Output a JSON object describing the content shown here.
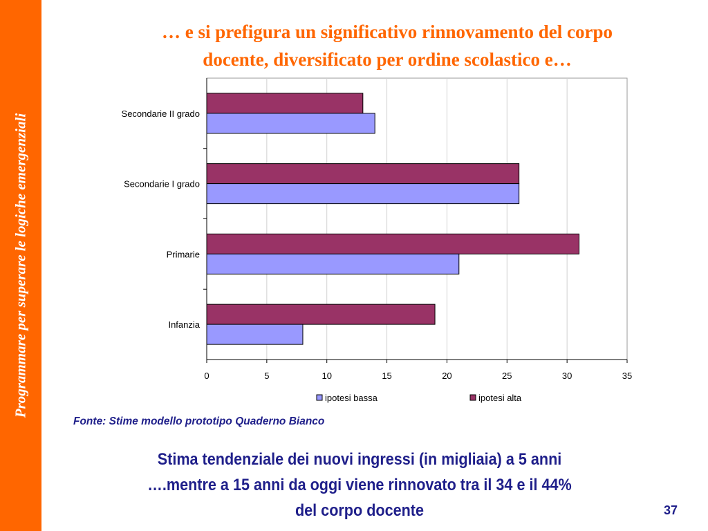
{
  "sidebar": {
    "text": "Programmare per superare le logiche emergenziali"
  },
  "slide": {
    "title_line1": "… e si prefigura un significativo rinnovamento del corpo",
    "title_line2": "docente, diversificato per ordine scolastico e…",
    "source": "Fonte: Stime modello prototipo Quaderno Bianco",
    "subtitle_line1": "Stima tendenziale dei nuovi ingressi (in migliaia) a 5 anni",
    "subtitle_line2": "….mentre a 15 anni da oggi viene rinnovato  tra il 34 e il 44%",
    "subtitle_line3": "del corpo docente",
    "page_number": "37"
  },
  "colors": {
    "sidebar": "#ff6600",
    "title": "#ff6600",
    "text_navy": "#1f1f8a",
    "series_bassa": "#9999ff",
    "series_alta": "#993366"
  },
  "chart_data": {
    "type": "bar",
    "orientation": "horizontal",
    "categories": [
      "Secondarie II grado",
      "Secondarie I grado",
      "Primarie",
      "Infanzia"
    ],
    "series": [
      {
        "name": "ipotesi bassa",
        "values": [
          14,
          26,
          21,
          8
        ]
      },
      {
        "name": "ipotesi alta",
        "values": [
          13,
          26,
          31,
          19
        ]
      }
    ],
    "xlim": [
      0,
      35
    ],
    "xticks": [
      "0",
      "5",
      "10",
      "15",
      "20",
      "25",
      "30",
      "35"
    ],
    "grid": true,
    "legend": "bottom"
  }
}
